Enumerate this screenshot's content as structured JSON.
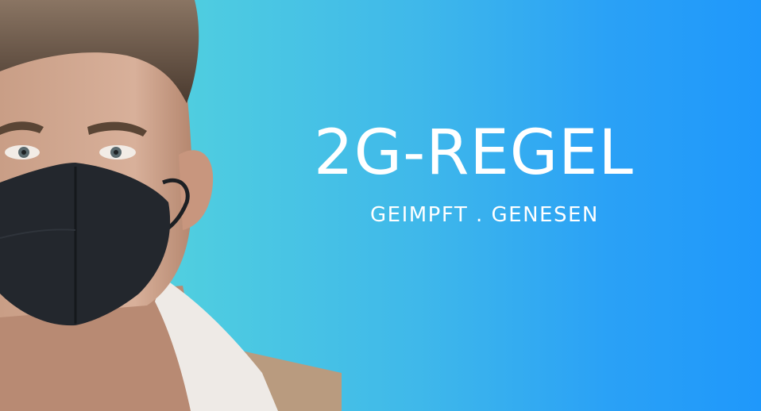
{
  "banner": {
    "headline": "2G-REGEL",
    "subline": "GEIMPFT . GENESEN"
  },
  "colors": {
    "gradient_left": "#5fdcd6",
    "gradient_right": "#1f98fb",
    "text": "#ffffff",
    "mask": "#23272d"
  }
}
